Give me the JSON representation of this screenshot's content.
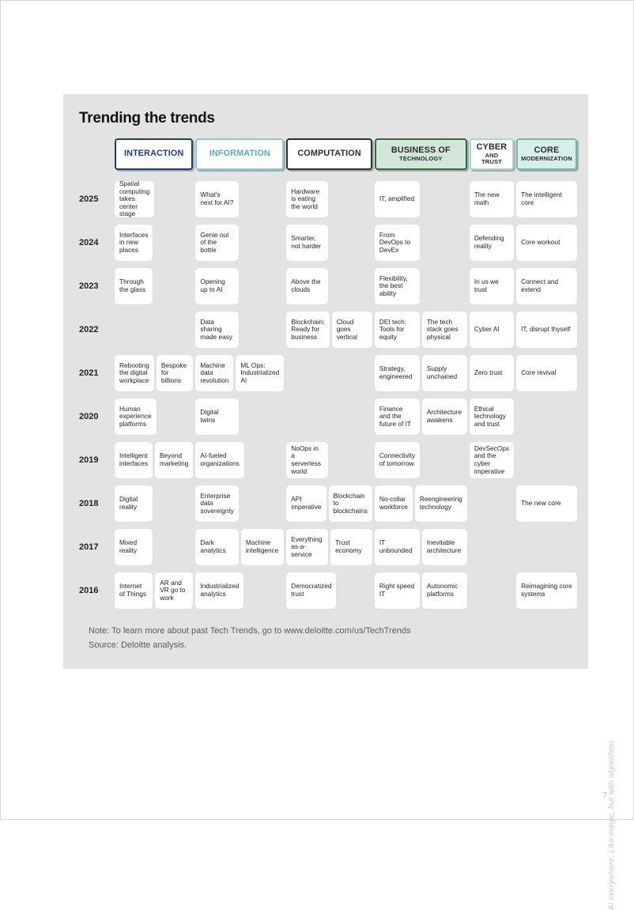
{
  "title": "Trending the trends",
  "note": "Note: To learn more about past Tech Trends, go to www.deloitte.com/us/TechTrends",
  "source": "Source: Deloitte analysis.",
  "side_caption": "AI everywhere: Like magic, but with algorithms",
  "page_number": "7",
  "columns": [
    {
      "id": "interaction",
      "label": "INTERACTION",
      "sub": "",
      "bg": "#ffffff",
      "fg": "#1c3d6e",
      "border": "#1c3d6e"
    },
    {
      "id": "information",
      "label": "INFORMATION",
      "sub": "",
      "bg": "#ffffff",
      "fg": "#5aa9c8",
      "border": "#8ec8dc"
    },
    {
      "id": "computation",
      "label": "COMPUTATION",
      "sub": "",
      "bg": "#ffffff",
      "fg": "#2b2b2b",
      "border": "#2b2b2b"
    },
    {
      "id": "biztech",
      "label": "BUSINESS OF",
      "sub": "TECHNOLOGY",
      "bg": "#d2e7d7",
      "fg": "#2b2b2b",
      "border": "#2f6b45"
    },
    {
      "id": "cyber",
      "label": "CYBER",
      "sub": "AND TRUST",
      "bg": "#ffffff",
      "fg": "#2b2b2b",
      "border": "#a9d7cf"
    },
    {
      "id": "core",
      "label": "CORE",
      "sub": "MODERNIZATION",
      "bg": "#d7efeb",
      "fg": "#2b2b2b",
      "border": "#6fb8ac"
    }
  ],
  "half_cols": {
    "interaction": true,
    "information": true,
    "computation": true,
    "biztech": true,
    "cyber": false,
    "core": false
  },
  "years": [
    "2025",
    "2024",
    "2023",
    "2022",
    "2021",
    "2020",
    "2019",
    "2018",
    "2017",
    "2016"
  ],
  "cells": {
    "2025": {
      "interaction": [
        "Spatial computing takes center stage",
        null
      ],
      "information": [
        "What's next for AI?",
        null
      ],
      "computation": [
        "Hardware is eating the world",
        null
      ],
      "biztech": [
        "IT, amplified",
        null
      ],
      "cyber": "The new math",
      "core": "The intelligent core"
    },
    "2024": {
      "interaction": [
        "Interfaces in new places",
        null
      ],
      "information": [
        "Genie out of the bottle",
        null
      ],
      "computation": [
        "Smarter, not harder",
        null
      ],
      "biztech": [
        "From DevOps to DevEx",
        null
      ],
      "cyber": "Defending reality",
      "core": "Core workout"
    },
    "2023": {
      "interaction": [
        "Through the glass",
        null
      ],
      "information": [
        "Opening up to AI",
        null
      ],
      "computation": [
        "Above the clouds",
        null
      ],
      "biztech": [
        "Flexibility, the best ability",
        null
      ],
      "cyber": "In us we trust",
      "core": "Connect and extend"
    },
    "2022": {
      "interaction": [
        null,
        null
      ],
      "information": [
        "Data sharing made easy",
        null
      ],
      "computation": [
        "Blockchain: Ready for business",
        "Cloud goes vertical"
      ],
      "biztech": [
        "DEI tech: Tools for equity",
        "The tech stack goes physical"
      ],
      "cyber": "Cyber AI",
      "core": "IT, disrupt thyself"
    },
    "2021": {
      "interaction": [
        "Rebooting the digital workplace",
        "Bespoke for billions"
      ],
      "information": [
        "Machine data revolution",
        "ML Ops: Industrialized AI"
      ],
      "computation": [
        null,
        null
      ],
      "biztech": [
        "Strategy, engineered",
        "Supply unchained"
      ],
      "cyber": "Zero trust",
      "core": "Core revival"
    },
    "2020": {
      "interaction": [
        "Human experience platforms",
        null
      ],
      "information": [
        "Digital twins",
        null
      ],
      "computation": [
        null,
        null
      ],
      "biztech": [
        "Finance and the future of IT",
        "Architecture awakens"
      ],
      "cyber": "Ethical technology and trust",
      "core": null
    },
    "2019": {
      "interaction": [
        "Intelligent interfaces",
        "Beyond marketing"
      ],
      "information": [
        "AI-fueled organizations",
        null
      ],
      "computation": [
        "NoOps in a serverless world",
        null
      ],
      "biztech": [
        "Connectivity of tomorrow",
        null
      ],
      "cyber": "DevSecOps and the cyber imperative",
      "core": null
    },
    "2018": {
      "interaction": [
        "Digital reality",
        null
      ],
      "information": [
        "Enterprise data sovereignty",
        null
      ],
      "computation": [
        "API imperative",
        "Blockchain to blockchains"
      ],
      "biztech": [
        "No-collar workforce",
        "Reengineering technology"
      ],
      "cyber": null,
      "core": "The new core"
    },
    "2017": {
      "interaction": [
        "Mixed reality",
        null
      ],
      "information": [
        "Dark analytics",
        "Machine intelligence"
      ],
      "computation": [
        "Everything as-a-service",
        "Trust economy"
      ],
      "biztech": [
        "IT unbounded",
        "Inevitable architecture"
      ],
      "cyber": null,
      "core": null
    },
    "2016": {
      "interaction": [
        "Internet of Things",
        "AR and VR go to work"
      ],
      "information": [
        "Industrialized analytics",
        null
      ],
      "computation": [
        "Democratized trust",
        null
      ],
      "biztech": [
        "Right speed IT",
        "Autonomic platforms"
      ],
      "cyber": null,
      "core": "Reimagining core systems"
    }
  },
  "colors": {
    "panel_bg": "#e3e3e3",
    "cell_bg": "#ffffff",
    "text": "#222222",
    "muted": "#5a5a5a"
  }
}
